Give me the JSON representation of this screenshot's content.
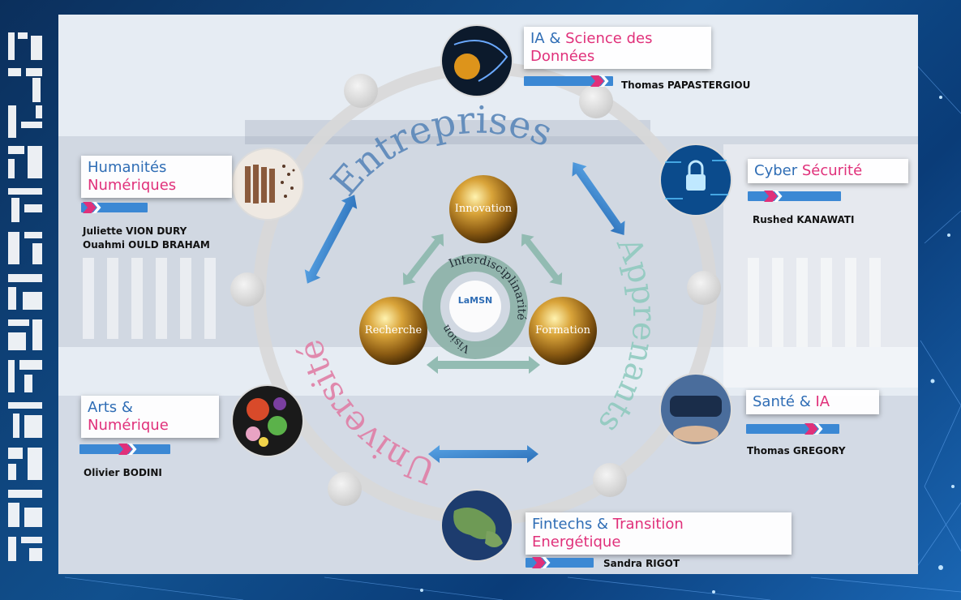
{
  "colors": {
    "blue": "#2f6db5",
    "pink": "#e0307a",
    "gold": "#b8862a",
    "teal": "#7fb8b0"
  },
  "center": {
    "logo": "LaMSN",
    "ring_words": [
      "Interdisciplinarité",
      "Vision"
    ],
    "spheres": [
      "Innovation",
      "Recherche",
      "Formation"
    ]
  },
  "outer_words": {
    "top": "Entreprises",
    "right": "Apprenants",
    "left": "Université"
  },
  "domains": [
    {
      "line1_a": "IA & ",
      "line1_b": "Science des",
      "line2": "Données",
      "person": "Thomas PAPASTERGIOU"
    },
    {
      "line1_a": "Cyber ",
      "line1_b": "Sécurité",
      "person": "Rushed KANAWATI"
    },
    {
      "line1_a": "Santé & ",
      "line1_b": "IA",
      "person": "Thomas GREGORY"
    },
    {
      "line1_a": "Fintechs & ",
      "line1_b": "Transition",
      "line2": "Energétique",
      "person": "Sandra RIGOT"
    },
    {
      "line1_a": "Arts & ",
      "line2": "Numérique",
      "person": "Olivier BODINI"
    },
    {
      "line1_a": "Humanités ",
      "line2": "Numériques",
      "person": "Juliette VION DURY",
      "person2": "Ouahmi OULD BRAHAM"
    }
  ]
}
